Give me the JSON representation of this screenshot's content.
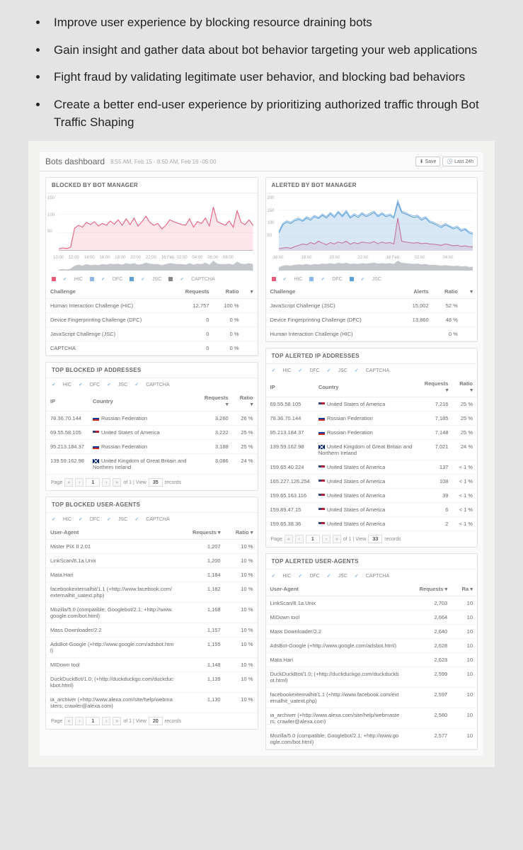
{
  "bullets": [
    "Improve user experience by blocking resource draining bots",
    "Gain insight and gather data about bot behavior targeting your web applications",
    "Fight fraud by validating legitimate user behavior, and blocking bad behaviors",
    "Create a better end-user experience by prioritizing authorized traffic through Bot Traffic Shaping"
  ],
  "dashboard": {
    "title": "Bots dashboard",
    "time_range": "8:55 AM, Feb 15 - 8:50 AM, Feb 16 -05:00",
    "btn_save": "Save",
    "btn_last24h": "Last 24h"
  },
  "blocked_panel": {
    "title": "BLOCKED BY BOT MANAGER",
    "ylim": [
      0,
      150
    ],
    "yticks": [
      50,
      100,
      150
    ],
    "xticks": [
      "10:00",
      "12:00",
      "14:00",
      "16:00",
      "18:00",
      "20:00",
      "22:00",
      "16 Feb.",
      "02:00",
      "04:00",
      "06:00",
      "08:00"
    ],
    "series": [
      {
        "name": "HIC",
        "color": "#e85a7a",
        "data": [
          5,
          8,
          6,
          10,
          62,
          70,
          65,
          78,
          72,
          80,
          68,
          75,
          70,
          82,
          73,
          85,
          70,
          88,
          72,
          90,
          68,
          80,
          95,
          78,
          70,
          75,
          60,
          70,
          85,
          80,
          76,
          72,
          70,
          88,
          65,
          80,
          75,
          90,
          68,
          120,
          80,
          75,
          70,
          82,
          65,
          110,
          78,
          72,
          85,
          70
        ]
      },
      {
        "name": "DFC",
        "color": "#8bb8e8",
        "data": [
          0,
          0,
          0,
          0,
          0,
          0,
          0,
          0,
          0,
          0,
          0,
          0,
          0,
          0,
          0,
          0,
          0,
          0,
          0,
          0,
          0,
          0,
          0,
          0,
          0,
          0,
          0,
          0,
          0,
          0,
          0,
          0,
          0,
          0,
          0,
          0,
          0,
          0,
          0,
          0,
          0,
          0,
          0,
          0,
          0,
          0,
          0,
          0,
          0,
          0
        ]
      },
      {
        "name": "JSC",
        "color": "#5aa0d8",
        "data": [
          0,
          0,
          0,
          0,
          0,
          0,
          0,
          0,
          0,
          0,
          0,
          0,
          0,
          0,
          0,
          0,
          0,
          0,
          0,
          0,
          0,
          0,
          0,
          0,
          0,
          0,
          0,
          0,
          0,
          0,
          0,
          0,
          0,
          0,
          0,
          0,
          0,
          0,
          0,
          0,
          0,
          0,
          0,
          0,
          0,
          0,
          0,
          0,
          0,
          0
        ]
      },
      {
        "name": "CAPTCHA",
        "color": "#888888",
        "data": [
          0,
          0,
          0,
          0,
          0,
          0,
          0,
          0,
          0,
          0,
          0,
          0,
          0,
          0,
          0,
          0,
          0,
          0,
          0,
          0,
          0,
          0,
          0,
          0,
          0,
          0,
          0,
          0,
          0,
          0,
          0,
          0,
          0,
          0,
          0,
          0,
          0,
          0,
          0,
          0,
          0,
          0,
          0,
          0,
          0,
          0,
          0,
          0,
          0,
          0
        ]
      }
    ],
    "mini_color": "#9aa0a6",
    "mini_data": [
      2,
      3,
      2,
      4,
      10,
      12,
      10,
      13,
      11,
      12,
      11,
      13,
      12,
      14,
      13,
      14,
      12,
      15,
      13,
      15,
      12,
      13,
      16,
      14,
      13,
      13,
      11,
      13,
      15,
      14,
      13,
      13,
      12,
      15,
      12,
      14,
      13,
      16,
      12,
      20,
      14,
      13,
      13,
      14,
      12,
      18,
      14,
      13,
      15,
      13
    ],
    "table": {
      "cols": [
        "Challenge",
        "Requests",
        "Ratio"
      ],
      "rows": [
        [
          "Human Interaction Challenge (HIC)",
          "12,757",
          "100 %"
        ],
        [
          "Device Fingerprinting Challenge (DFC)",
          "0",
          "0 %"
        ],
        [
          "JavaScript Challenge (JSC)",
          "0",
          "0 %"
        ],
        [
          "CAPTCHA",
          "0",
          "0 %"
        ]
      ]
    }
  },
  "alerted_panel": {
    "title": "ALERTED BY BOT MANAGER",
    "ylim": [
      0,
      200
    ],
    "yticks": [
      50,
      100,
      150,
      200
    ],
    "xticks": [
      "16:00",
      "18:00",
      "20:00",
      "22:00",
      "16 Feb.",
      "02:00",
      "04:00"
    ],
    "series": [
      {
        "name": "HIC",
        "color": "#e85a7a",
        "data": [
          8,
          10,
          12,
          9,
          15,
          20,
          25,
          22,
          30,
          25,
          35,
          28,
          22,
          30,
          25,
          32,
          28,
          35,
          24,
          30,
          26,
          32,
          30,
          28,
          34,
          26,
          32,
          28,
          30,
          25,
          120,
          35,
          32,
          30,
          28,
          30,
          26,
          28,
          25,
          24,
          22,
          20,
          25,
          22,
          18,
          20,
          16,
          18,
          15,
          14
        ]
      },
      {
        "name": "DFC",
        "color": "#8bb8e8",
        "data": [
          70,
          100,
          110,
          105,
          115,
          120,
          112,
          125,
          118,
          130,
          122,
          135,
          125,
          140,
          128,
          145,
          130,
          148,
          125,
          135,
          128,
          140,
          130,
          138,
          145,
          130,
          140,
          130,
          135,
          125,
          185,
          145,
          140,
          132,
          128,
          130,
          118,
          125,
          110,
          105,
          98,
          90,
          100,
          92,
          85,
          90,
          78,
          82,
          70,
          65
        ]
      },
      {
        "name": "JSC",
        "color": "#5aa0d8",
        "data": [
          65,
          95,
          105,
          100,
          110,
          115,
          108,
          120,
          112,
          125,
          118,
          130,
          120,
          135,
          122,
          140,
          125,
          142,
          120,
          130,
          122,
          135,
          125,
          132,
          140,
          125,
          135,
          125,
          130,
          120,
          175,
          140,
          135,
          128,
          122,
          125,
          112,
          120,
          105,
          100,
          92,
          85,
          95,
          88,
          80,
          85,
          72,
          78,
          65,
          60
        ]
      }
    ],
    "mini_color": "#9aa0a6",
    "mini_data": [
      8,
      12,
      13,
      12,
      14,
      15,
      14,
      16,
      14,
      16,
      15,
      17,
      16,
      18,
      16,
      19,
      17,
      19,
      16,
      17,
      16,
      18,
      17,
      18,
      19,
      17,
      18,
      17,
      18,
      16,
      24,
      19,
      18,
      17,
      16,
      17,
      15,
      16,
      14,
      14,
      13,
      12,
      13,
      12,
      11,
      12,
      10,
      11,
      9,
      9
    ],
    "table": {
      "cols": [
        "Challenge",
        "Alerts",
        "Ratio"
      ],
      "rows": [
        [
          "JavaScript Challenge (JSC)",
          "15,002",
          "52 %"
        ],
        [
          "Device Fingerprinting Challenge (DFC)",
          "13,860",
          "48 %"
        ],
        [
          "Human Interaction Challenge (HIC)",
          "",
          "0 %"
        ]
      ]
    }
  },
  "filters": [
    "HIC",
    "DFC",
    "JSC",
    "CAPTCHA"
  ],
  "top_blocked_ip": {
    "title": "TOP BLOCKED IP ADDRESSES",
    "cols": [
      "IP",
      "Country",
      "Requests",
      "Ratio"
    ],
    "rows": [
      {
        "ip": "78.36.70.144",
        "flag": "ru",
        "country": "Russian Federation",
        "req": "3,260",
        "ratio": "26 %"
      },
      {
        "ip": "69.55.58.105",
        "flag": "us",
        "country": "United States of America",
        "req": "3,222",
        "ratio": "25 %"
      },
      {
        "ip": "95.213.184.37",
        "flag": "ru",
        "country": "Russian Federation",
        "req": "3,188",
        "ratio": "25 %"
      },
      {
        "ip": "139.59.162.98",
        "flag": "gb",
        "country": "United Kingdom of Great Britain and Northern Ireland",
        "req": "3,086",
        "ratio": "24 %"
      }
    ],
    "pager": {
      "page": "1",
      "of": "of 1 | View",
      "view": "35",
      "records": "records"
    }
  },
  "top_alerted_ip": {
    "title": "TOP ALERTED IP ADDRESSES",
    "cols": [
      "IP",
      "Country",
      "Requests",
      "Ratio"
    ],
    "rows": [
      {
        "ip": "69.55.58.105",
        "flag": "us",
        "country": "United States of America",
        "req": "7,216",
        "ratio": "25 %"
      },
      {
        "ip": "78.36.70.144",
        "flag": "ru",
        "country": "Russian Federation",
        "req": "7,185",
        "ratio": "25 %"
      },
      {
        "ip": "95.213.184.37",
        "flag": "ru",
        "country": "Russian Federation",
        "req": "7,148",
        "ratio": "25 %"
      },
      {
        "ip": "139.59.162.98",
        "flag": "gb",
        "country": "United Kingdom of Great Britain and Northern Ireland",
        "req": "7,021",
        "ratio": "24 %"
      },
      {
        "ip": "159.65.40.224",
        "flag": "us",
        "country": "United States of America",
        "req": "137",
        "ratio": "< 1 %"
      },
      {
        "ip": "165.227.126.254",
        "flag": "us",
        "country": "United States of America",
        "req": "108",
        "ratio": "< 1 %"
      },
      {
        "ip": "159.65.163.116",
        "flag": "us",
        "country": "United States of America",
        "req": "39",
        "ratio": "< 1 %"
      },
      {
        "ip": "159.89.47.15",
        "flag": "us",
        "country": "United States of America",
        "req": "6",
        "ratio": "< 1 %"
      },
      {
        "ip": "159.65.38.36",
        "flag": "us",
        "country": "United States of America",
        "req": "2",
        "ratio": "< 1 %"
      }
    ],
    "pager": {
      "page": "1",
      "of": "of 1 | View",
      "view": "33",
      "records": "records"
    }
  },
  "top_blocked_ua": {
    "title": "TOP BLOCKED USER-AGENTS",
    "cols": [
      "User-Agent",
      "Requests",
      "Ratio"
    ],
    "rows": [
      {
        "ua": "Mister PiX II 2.01",
        "req": "1,207",
        "ratio": "10 %"
      },
      {
        "ua": "LinkScan/8.1a.Unix",
        "req": "1,200",
        "ratio": "10 %"
      },
      {
        "ua": "Mata.Hari",
        "req": "1,184",
        "ratio": "10 %"
      },
      {
        "ua": "facebookexternalhit/1.1 (+http://www.facebook.com/externalhit_uatext.php)",
        "req": "1,182",
        "ratio": "10 %"
      },
      {
        "ua": "Mozilla/5.0 (compatible; Googlebot/2.1; +http://www.google.com/bot.html)",
        "req": "1,168",
        "ratio": "10 %"
      },
      {
        "ua": "Mass Downloader/2.2",
        "req": "1,157",
        "ratio": "10 %"
      },
      {
        "ua": "AdsBot-Google (+http://www.google.com/adsbot.html)",
        "req": "1,155",
        "ratio": "10 %"
      },
      {
        "ua": "MIDown tool",
        "req": "1,148",
        "ratio": "10 %"
      },
      {
        "ua": "DuckDuckBot/1.0; (+http://duckduckgo.com/duckduckbot.html)",
        "req": "1,139",
        "ratio": "10 %"
      },
      {
        "ua": "ia_archiver (+http://www.alexa.com/site/help/webmasters; crawler@alexa.com)",
        "req": "1,130",
        "ratio": "10 %"
      }
    ],
    "pager": {
      "page": "1",
      "of": "of 1 | View",
      "view": "20",
      "records": "records"
    }
  },
  "top_alerted_ua": {
    "title": "TOP ALERTED USER-AGENTS",
    "cols": [
      "User-Agent",
      "Requests",
      "Ra"
    ],
    "rows": [
      {
        "ua": "LinkScan/8.1a.Unix",
        "req": "2,703",
        "ratio": "10"
      },
      {
        "ua": "MIDown tool",
        "req": "2,664",
        "ratio": "10"
      },
      {
        "ua": "Mass Downloader/2.2",
        "req": "2,640",
        "ratio": "10"
      },
      {
        "ua": "AdsBot-Google (+http://www.google.com/adsbot.html)",
        "req": "2,628",
        "ratio": "10"
      },
      {
        "ua": "Mata.Hari",
        "req": "2,623",
        "ratio": "10"
      },
      {
        "ua": "DuckDuckBot/1.0; (+http://duckduckgo.com/duckduckbot.html)",
        "req": "2,599",
        "ratio": "10"
      },
      {
        "ua": "facebookexternalhit/1.1 (+http://www.facebook.com/externalhit_uatext.php)",
        "req": "2,597",
        "ratio": "10"
      },
      {
        "ua": "ia_archiver (+http://www.alexa.com/site/help/webmasters; crawler@alexa.com)",
        "req": "2,580",
        "ratio": "10"
      },
      {
        "ua": "Mozilla/5.0 (compatible; Googlebot/2.1; +http://www.google.com/bot.html)",
        "req": "2,577",
        "ratio": "10"
      }
    ]
  },
  "pager_label": "Page"
}
